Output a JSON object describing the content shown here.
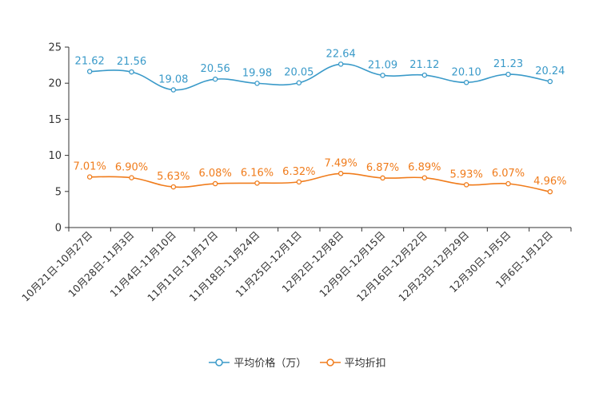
{
  "chart_data": {
    "type": "line",
    "categories": [
      "10月21日-10月27日",
      "10月28日-11月3日",
      "11月4日-11月10日",
      "11月11日-11月17日",
      "11月18日-11月24日",
      "11月25日-12月1日",
      "12月2日-12月8日",
      "12月9日-12月15日",
      "12月16日-12月22日",
      "12月23日-12月29日",
      "12月30日-1月5日",
      "1月6日-1月12日"
    ],
    "ylim": [
      0,
      25
    ],
    "yticks": [
      "0",
      "5",
      "10",
      "15",
      "20",
      "25"
    ],
    "series": [
      {
        "name": "平均价格（万）",
        "color": "#3a9ac9",
        "values": [
          21.62,
          21.56,
          19.08,
          20.56,
          19.98,
          20.05,
          22.64,
          21.09,
          21.12,
          20.1,
          21.23,
          20.24
        ],
        "labels": [
          "21.62",
          "21.56",
          "19.08",
          "20.56",
          "19.98",
          "20.05",
          "22.64",
          "21.09",
          "21.12",
          "20.10",
          "21.23",
          "20.24"
        ]
      },
      {
        "name": "平均折扣",
        "color": "#f07c1c",
        "values": [
          7.01,
          6.9,
          5.63,
          6.08,
          6.16,
          6.32,
          7.49,
          6.87,
          6.89,
          5.93,
          6.07,
          4.96
        ],
        "labels": [
          "7.01%",
          "6.90%",
          "5.63%",
          "6.08%",
          "6.16%",
          "6.32%",
          "7.49%",
          "6.87%",
          "6.89%",
          "5.93%",
          "6.07%",
          "4.96%"
        ]
      }
    ],
    "legend_position": "bottom"
  }
}
